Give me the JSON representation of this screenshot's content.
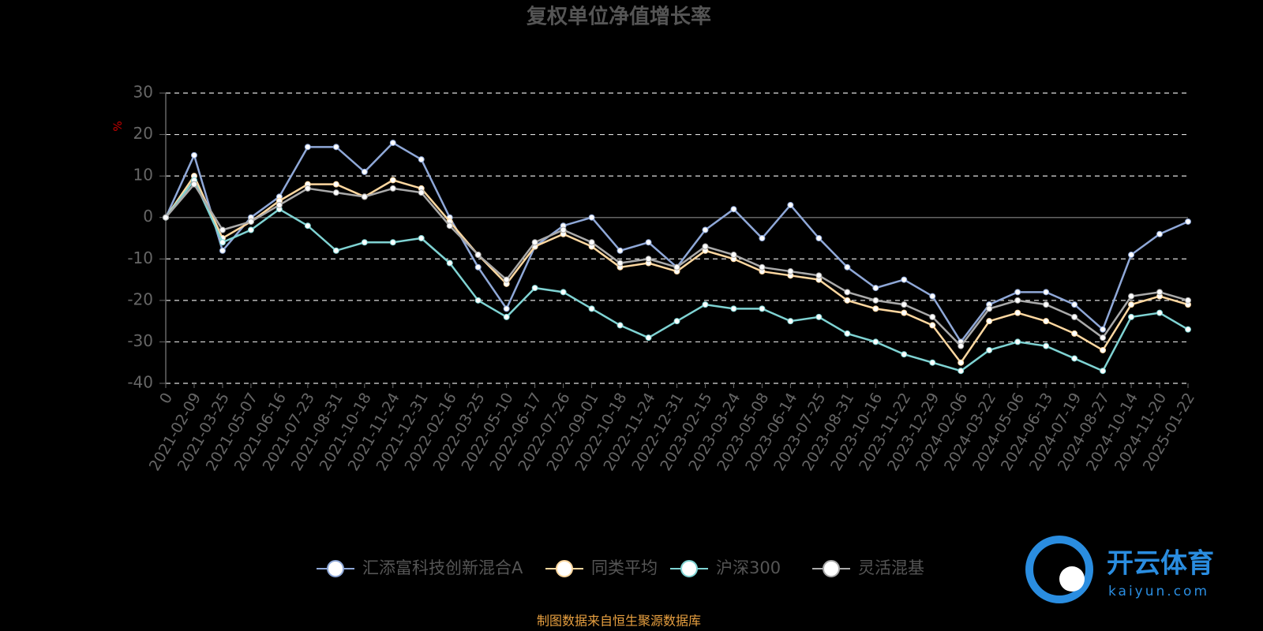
{
  "chart_data": {
    "type": "line",
    "title": "复权单位净值增长率",
    "y_label": "%",
    "categories": [
      "0",
      "2021-02-09",
      "2021-03-25",
      "2021-05-07",
      "2021-06-16",
      "2021-07-23",
      "2021-08-31",
      "2021-10-18",
      "2021-11-24",
      "2021-12-31",
      "2022-02-16",
      "2022-03-25",
      "2022-05-10",
      "2022-06-17",
      "2022-07-26",
      "2022-09-01",
      "2022-10-18",
      "2022-11-24",
      "2022-12-31",
      "2023-02-15",
      "2023-03-24",
      "2023-05-08",
      "2023-06-14",
      "2023-07-25",
      "2023-08-31",
      "2023-10-16",
      "2023-11-22",
      "2023-12-29",
      "2024-02-06",
      "2024-03-22",
      "2024-05-06",
      "2024-06-13",
      "2024-07-19",
      "2024-08-27",
      "2024-10-14",
      "2024-11-20",
      "2025-01-22"
    ],
    "series": [
      {
        "name": "汇添富科技创新混合A",
        "color": "#8fa8d8",
        "values": [
          0,
          15,
          -8,
          0,
          5,
          17,
          17,
          11,
          18,
          14,
          0,
          -12,
          -22,
          -7,
          -2,
          0,
          -8,
          -6,
          -12,
          -3,
          2,
          -5,
          3,
          -5,
          -12,
          -17,
          -15,
          -19,
          -30,
          -21,
          -18,
          -18,
          -21,
          -27,
          -9,
          -4,
          -1
        ]
      },
      {
        "name": "同类平均",
        "color": "#ffd8a0",
        "values": [
          0,
          10,
          -5,
          -1,
          4,
          8,
          8,
          5,
          9,
          7,
          -1,
          -9,
          -16,
          -7,
          -4,
          -7,
          -12,
          -11,
          -13,
          -8,
          -10,
          -13,
          -14,
          -15,
          -20,
          -22,
          -23,
          -26,
          -35,
          -25,
          -23,
          -25,
          -28,
          -32,
          -21,
          -19,
          -21
        ]
      },
      {
        "name": "沪深300",
        "color": "#7fd3d3",
        "values": [
          0,
          9,
          -6,
          -3,
          2,
          -2,
          -8,
          -6,
          -6,
          -5,
          -11,
          -20,
          -24,
          -17,
          -18,
          -22,
          -26,
          -29,
          -25,
          -21,
          -22,
          -22,
          -25,
          -24,
          -28,
          -30,
          -33,
          -35,
          -37,
          -32,
          -30,
          -31,
          -34,
          -37,
          -24,
          -23,
          -27
        ]
      },
      {
        "name": "灵活混基",
        "color": "#aaaaaa",
        "values": [
          0,
          8,
          -3,
          -1,
          3,
          7,
          6,
          5,
          7,
          6,
          -2,
          -9,
          -15,
          -6,
          -3,
          -6,
          -11,
          -10,
          -12,
          -7,
          -9,
          -12,
          -13,
          -14,
          -18,
          -20,
          -21,
          -24,
          -31,
          -22,
          -20,
          -21,
          -24,
          -29,
          -19,
          -18,
          -20
        ]
      }
    ],
    "ylim": [
      -40,
      30
    ],
    "yticks": [
      -40,
      -30,
      -20,
      -10,
      0,
      10,
      20,
      30
    ],
    "grid": true
  },
  "footer": "制图数据来自恒生聚源数据库",
  "watermark": {
    "name": "开云体育",
    "site": "kaiyun.com"
  }
}
